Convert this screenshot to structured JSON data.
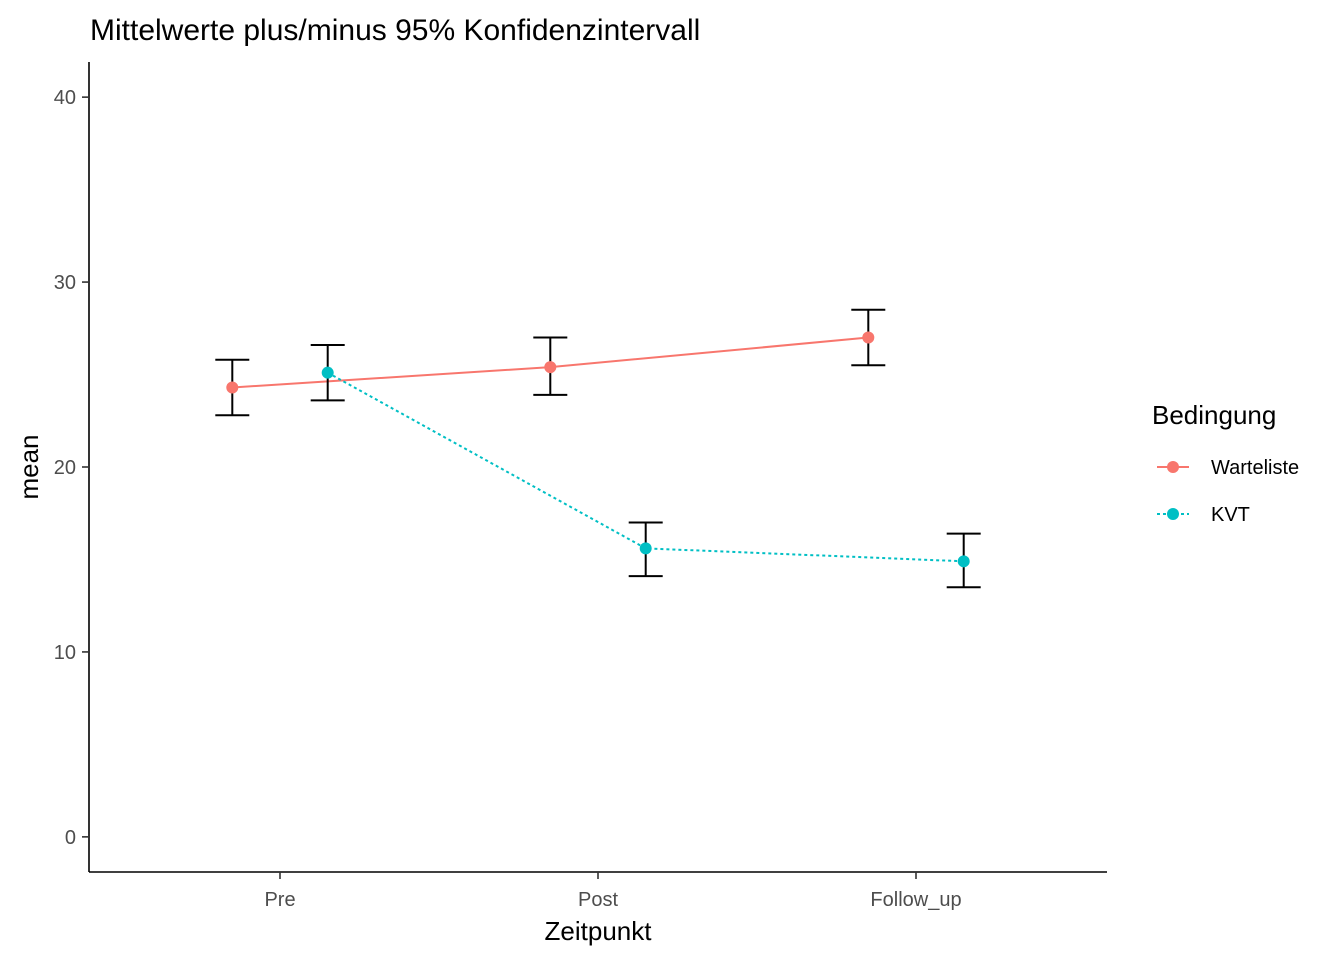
{
  "chart_data": {
    "type": "line",
    "title": "Mittelwerte plus/minus 95% Konfidenzintervall",
    "xlabel": "Zeitpunkt",
    "ylabel": "mean",
    "categories": [
      "Pre",
      "Post",
      "Follow_up"
    ],
    "y_ticks": [
      0,
      10,
      20,
      30,
      40
    ],
    "ylim": [
      -1.9,
      41.9
    ],
    "grid": false,
    "error_bars": "95% CI",
    "dodge": 0.3,
    "legend": {
      "title": "Bedingung",
      "position": "right"
    },
    "series": [
      {
        "name": "Warteliste",
        "color": "#f8766d",
        "linetype": "solid",
        "values": [
          24.3,
          25.4,
          27.0
        ],
        "ci_low": [
          22.8,
          23.9,
          25.5
        ],
        "ci_high": [
          25.8,
          27.0,
          28.5
        ]
      },
      {
        "name": "KVT",
        "color": "#00bfc4",
        "linetype": "dotted",
        "values": [
          25.1,
          15.6,
          14.9
        ],
        "ci_low": [
          23.6,
          14.1,
          13.5
        ],
        "ci_high": [
          26.6,
          17.0,
          16.4
        ]
      }
    ]
  }
}
